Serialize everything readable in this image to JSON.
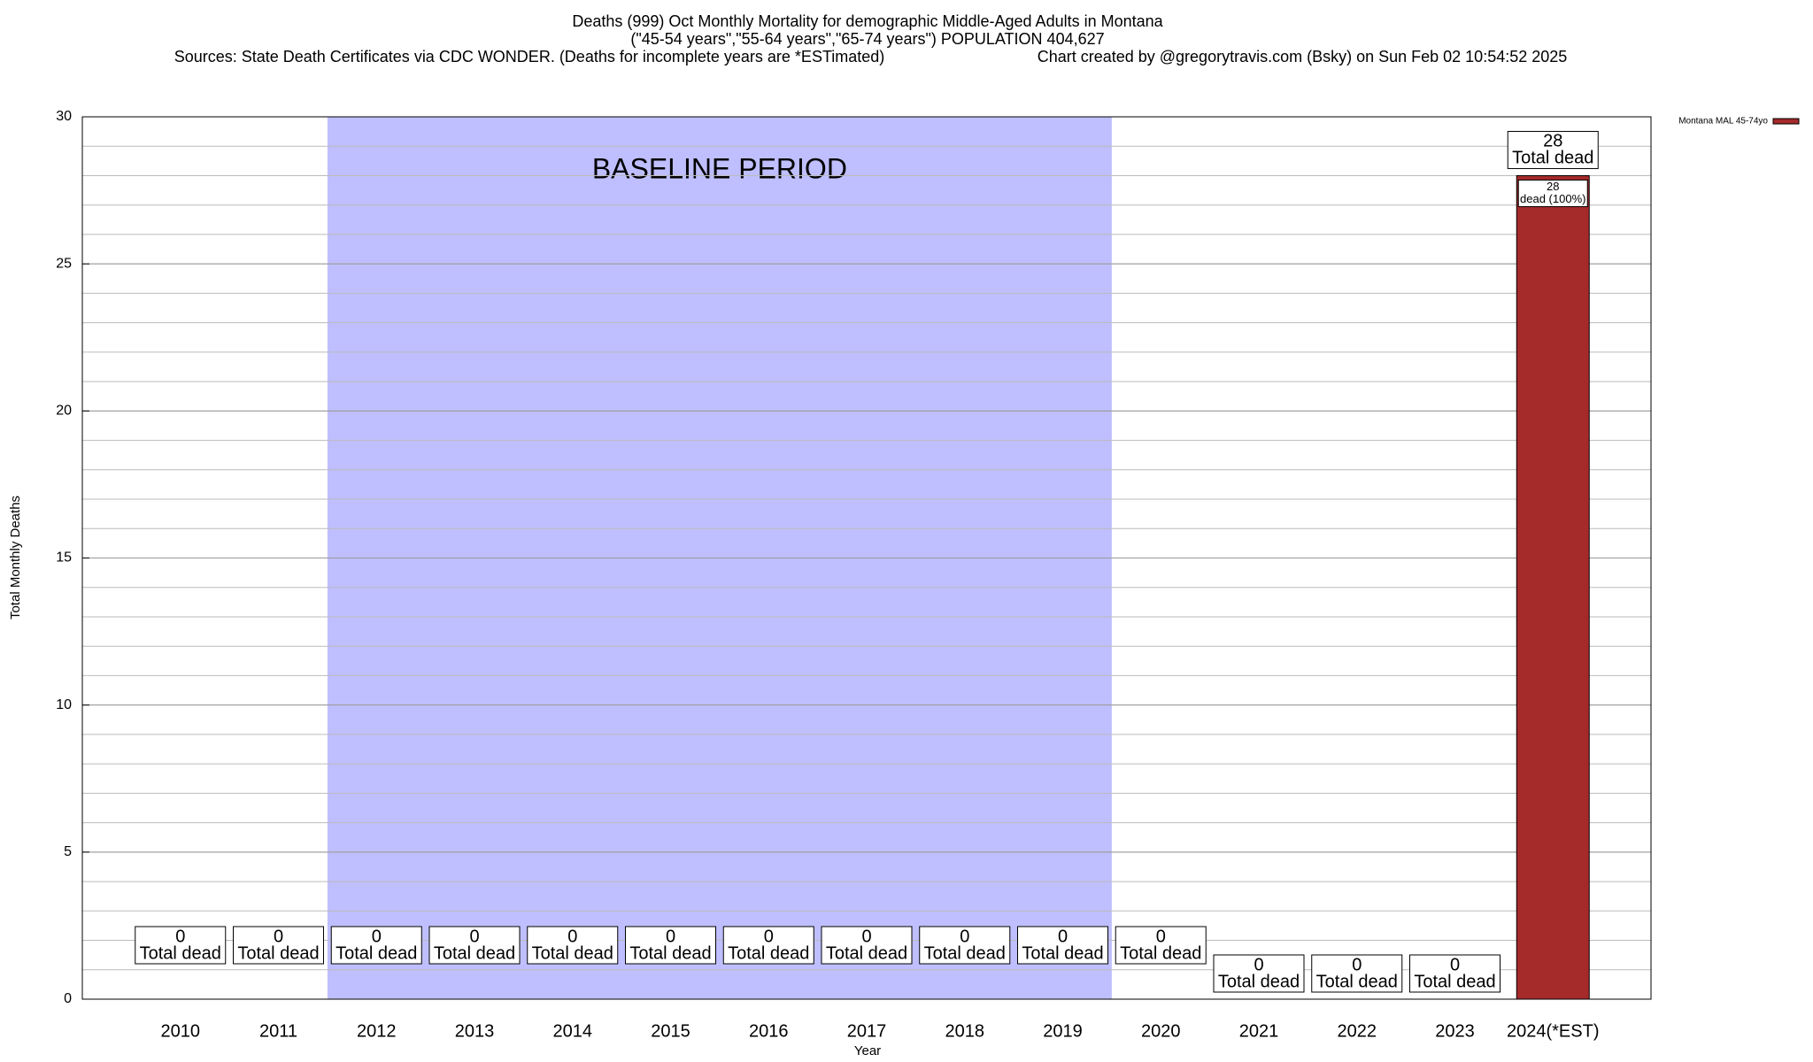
{
  "chart_data": {
    "type": "bar",
    "title": "Deaths (999) Oct Monthly Mortality for demographic Middle-Aged Adults in Montana",
    "subtitle": "(\"45-54 years\",\"55-64 years\",\"65-74 years\") POPULATION 404,627",
    "source": "Sources: State Death Certificates via CDC WONDER. (Deaths for incomplete years are *ESTimated)",
    "credit": "Chart created by @gregorytravis.com (Bsky) on Sun Feb 02 10:54:52 2025",
    "x_label": "Year",
    "y_label": "Total Monthly Deaths",
    "categories": [
      "2010",
      "2011",
      "2012",
      "2013",
      "2014",
      "2015",
      "2016",
      "2017",
      "2018",
      "2019",
      "2020",
      "2021",
      "2022",
      "2023",
      "2024(*EST)"
    ],
    "series": [
      {
        "name": "Montana MAL 45-74yo",
        "color": "#a52a2a",
        "values": [
          0,
          0,
          0,
          0,
          0,
          0,
          0,
          0,
          0,
          0,
          0,
          0,
          0,
          0,
          28
        ]
      }
    ],
    "total_label_suffix": "Total dead",
    "segment_label_suffix": "dead (100%)",
    "shade": {
      "from": "2012",
      "to": "2019",
      "label": "BASELINE PERIOD",
      "color": "#bfbfff"
    },
    "ylim": [
      0,
      30
    ],
    "yticks": [
      0,
      5,
      10,
      15,
      20,
      25,
      30
    ],
    "minor_grid_step": 1,
    "grid": true,
    "legend": "top-right"
  }
}
